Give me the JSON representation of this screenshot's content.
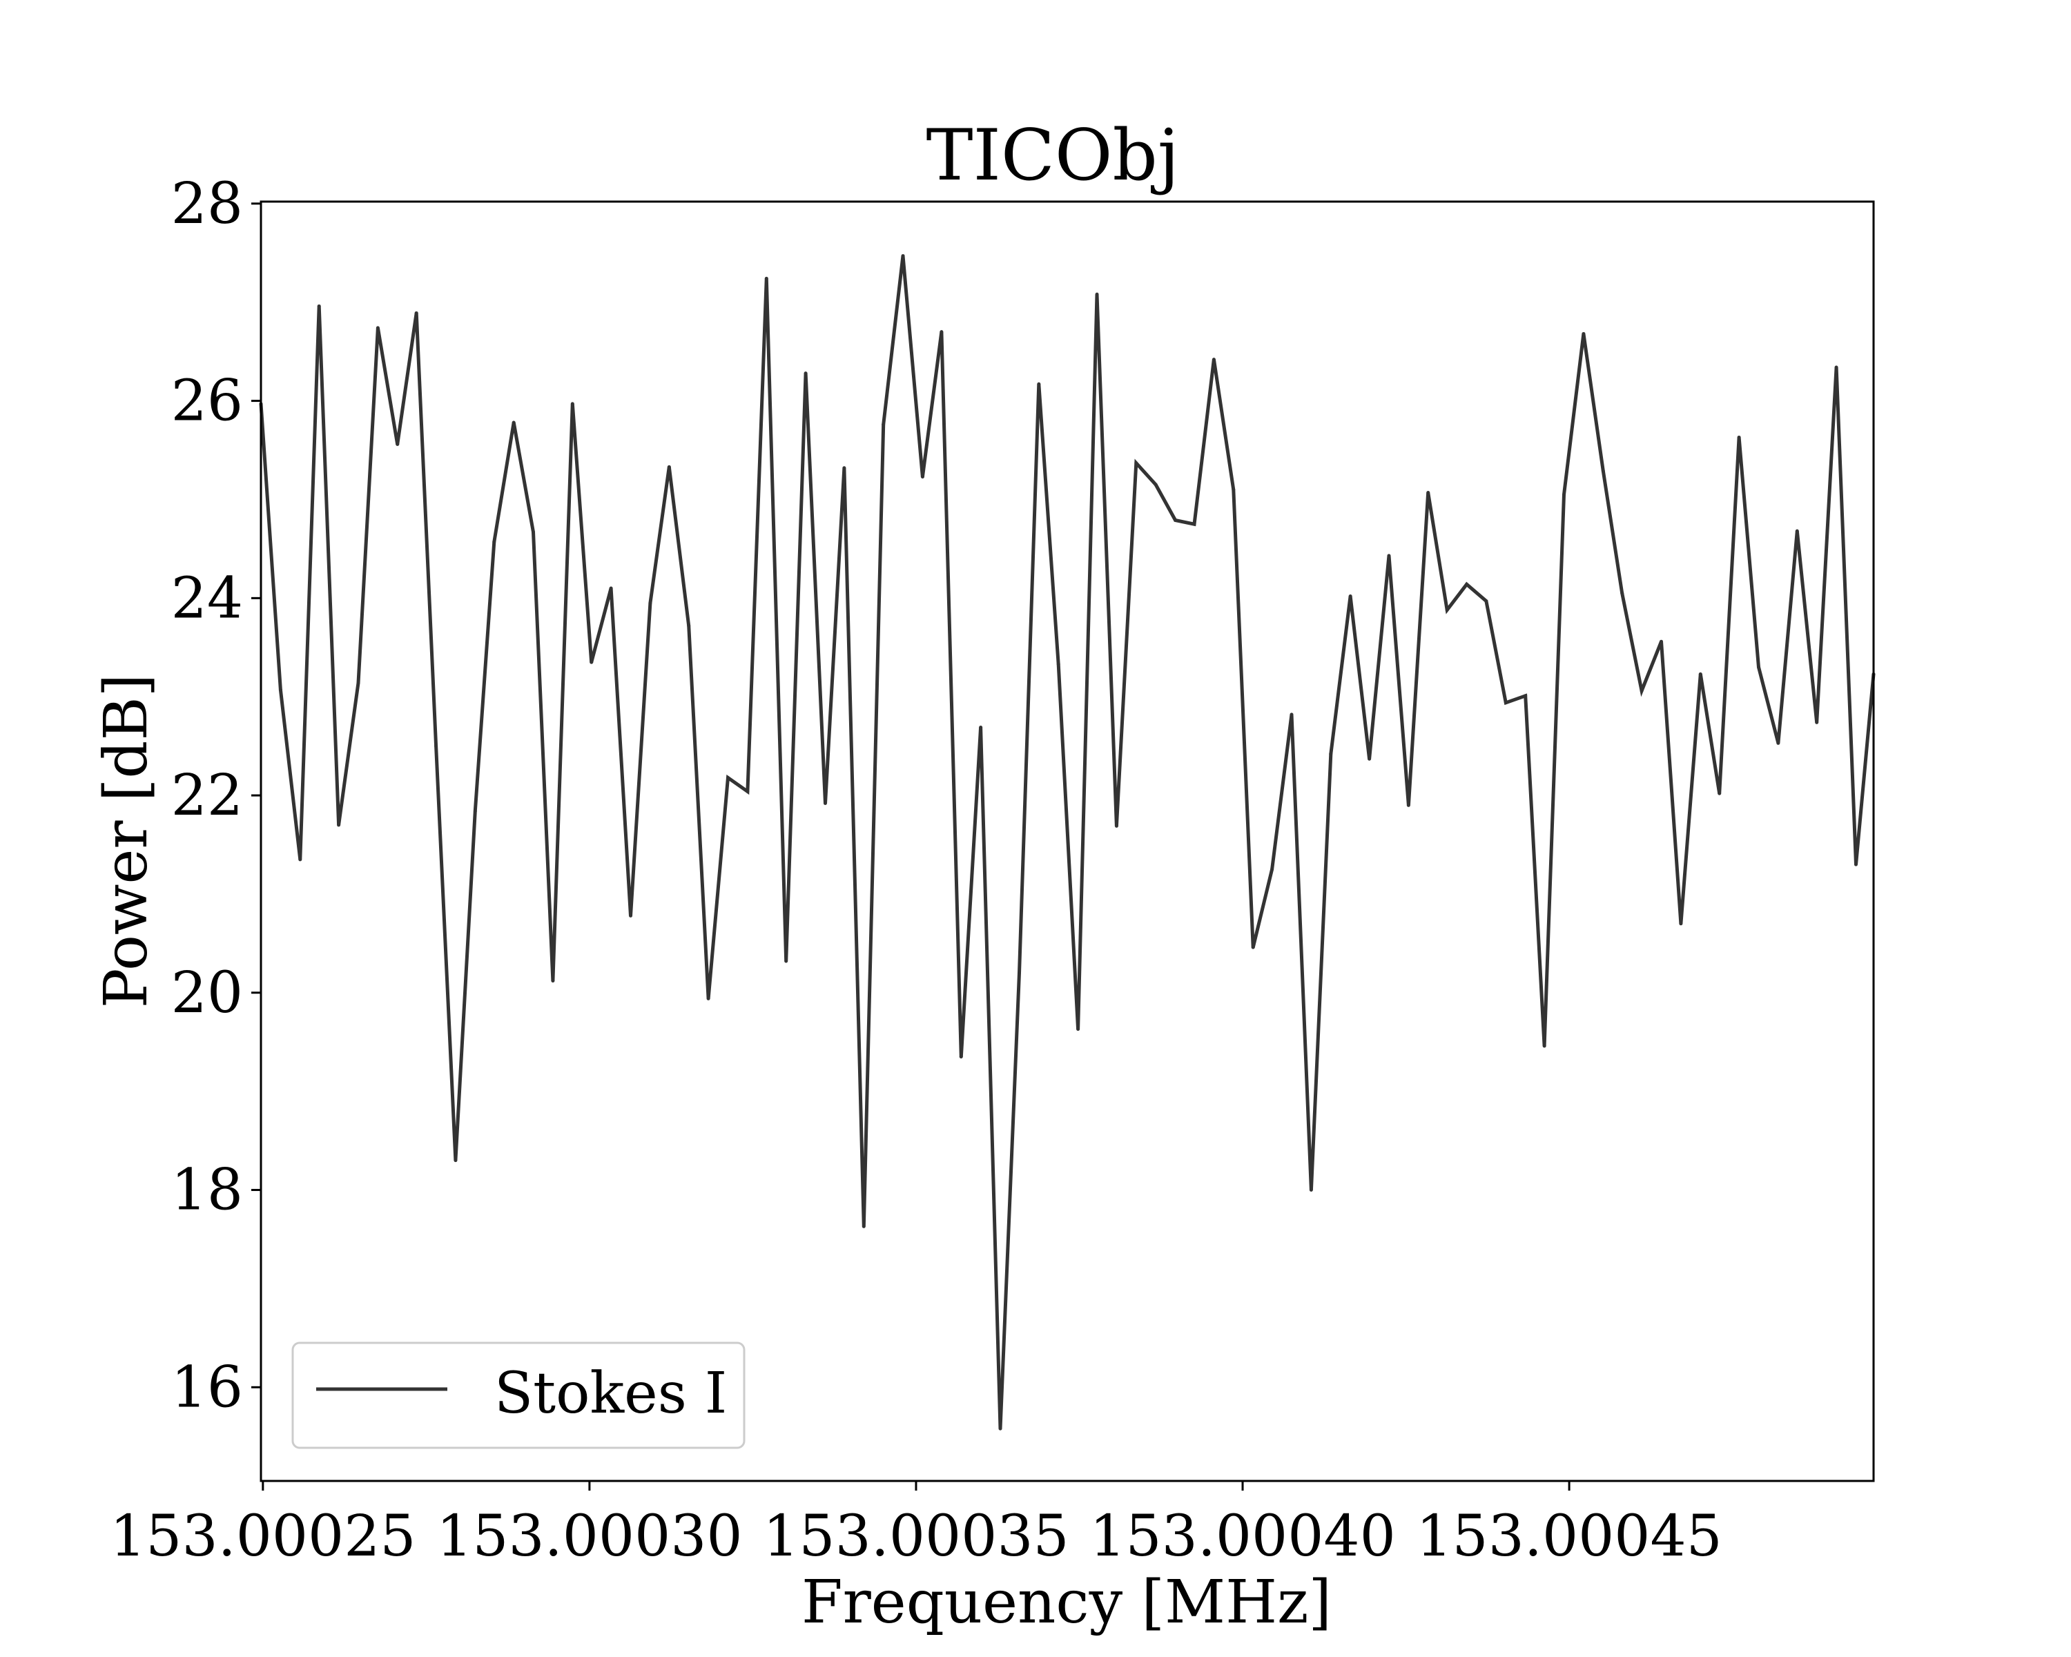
{
  "chart_data": {
    "type": "line",
    "title": "TICObj",
    "xlabel": "Frequency [MHz]",
    "ylabel": "Power [dB]",
    "xlim": [
      153.0002497,
      153.0004966
    ],
    "ylim": [
      15.05,
      28.02
    ],
    "x_ticks": [
      {
        "value": 153.00025,
        "label": "153.00025"
      },
      {
        "value": 153.0003,
        "label": "153.00030"
      },
      {
        "value": 153.00035,
        "label": "153.00035"
      },
      {
        "value": 153.0004,
        "label": "153.00040"
      },
      {
        "value": 153.00045,
        "label": "153.00045"
      }
    ],
    "y_ticks": [
      {
        "value": 16,
        "label": "16"
      },
      {
        "value": 18,
        "label": "18"
      },
      {
        "value": 20,
        "label": "20"
      },
      {
        "value": 22,
        "label": "22"
      },
      {
        "value": 24,
        "label": "24"
      },
      {
        "value": 26,
        "label": "26"
      },
      {
        "value": 28,
        "label": "28"
      }
    ],
    "grid": false,
    "legend_position": "lower-left",
    "line_color": "#333333",
    "series": [
      {
        "name": "Stokes I",
        "x": [
          153.0002497,
          153.0002527,
          153.0002557,
          153.0002586,
          153.0002616,
          153.0002646,
          153.0002676,
          153.0002706,
          153.0002735,
          153.0002765,
          153.0002795,
          153.0002825,
          153.0002854,
          153.0002884,
          153.0002914,
          153.0002944,
          153.0002974,
          153.0003003,
          153.0003033,
          153.0003063,
          153.0003093,
          153.0003122,
          153.0003152,
          153.0003182,
          153.0003212,
          153.0003242,
          153.0003271,
          153.0003301,
          153.0003331,
          153.0003361,
          153.000339,
          153.000342,
          153.000345,
          153.000348,
          153.000351,
          153.0003539,
          153.0003569,
          153.0003599,
          153.0003629,
          153.0003658,
          153.0003688,
          153.0003718,
          153.0003748,
          153.0003777,
          153.0003807,
          153.0003837,
          153.0003867,
          153.0003897,
          153.0003926,
          153.0003956,
          153.0003986,
          153.0004016,
          153.0004045,
          153.0004075,
          153.0004105,
          153.0004135,
          153.0004165,
          153.0004194,
          153.0004224,
          153.0004254,
          153.0004284,
          153.0004313,
          153.0004343,
          153.0004373,
          153.0004403,
          153.0004433,
          153.0004462,
          153.0004492,
          153.0004522,
          153.0004552,
          153.0004581,
          153.0004611,
          153.0004641,
          153.0004671,
          153.0004701,
          153.000473,
          153.000476,
          153.000479,
          153.000482,
          153.0004849,
          153.0004879,
          153.0004909,
          153.0004939,
          153.0004966
        ],
        "values": [
          25.97,
          23.07,
          21.35,
          26.96,
          21.7,
          23.14,
          26.74,
          25.56,
          26.89,
          22.5,
          18.3,
          21.84,
          24.57,
          25.78,
          24.67,
          20.12,
          25.97,
          23.35,
          24.1,
          20.78,
          23.95,
          25.33,
          23.72,
          19.94,
          22.18,
          22.04,
          27.24,
          20.32,
          26.28,
          21.92,
          25.32,
          17.63,
          25.76,
          27.47,
          25.23,
          26.7,
          19.35,
          22.69,
          15.58,
          20.2,
          26.17,
          23.33,
          19.63,
          27.08,
          21.69,
          25.37,
          25.15,
          24.79,
          24.75,
          26.42,
          25.1,
          20.46,
          21.25,
          22.82,
          18.0,
          22.42,
          24.02,
          22.37,
          24.43,
          21.9,
          25.07,
          23.88,
          24.14,
          23.97,
          22.94,
          23.01,
          19.46,
          25.05,
          26.68,
          25.29,
          24.05,
          23.06,
          23.56,
          20.7,
          23.23,
          22.02,
          25.63,
          23.3,
          22.53,
          24.68,
          22.74,
          26.34,
          21.3,
          23.23
        ]
      }
    ]
  }
}
